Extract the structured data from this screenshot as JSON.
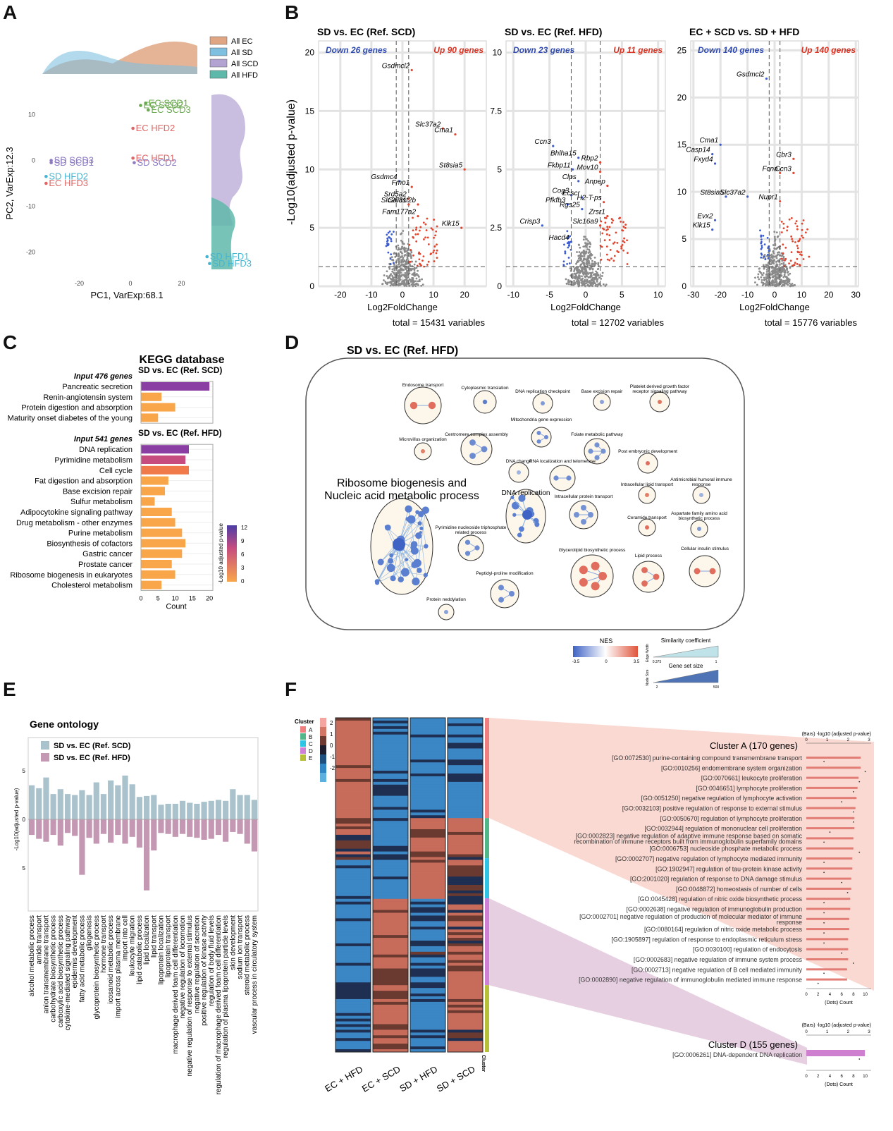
{
  "panels": {
    "a": "A",
    "b": "B",
    "c": "C",
    "d": "D",
    "e": "E",
    "f": "F"
  },
  "chart_data": [
    {
      "id": "A",
      "type": "scatter",
      "xlabel": "PC1, VarExp:68.1",
      "ylabel": "PC2, VarExp:12.3",
      "x_ticks": [
        -20,
        0,
        20
      ],
      "y_ticks": [
        10,
        0,
        -10,
        -20
      ],
      "legend": [
        "All EC",
        "All SD",
        "All SCD",
        "All HFD"
      ],
      "legend_colors": [
        "#e0a684",
        "#7fbfdf",
        "#b2a3d2",
        "#5fb9aa"
      ],
      "points": [
        {
          "label": "EC SCD1",
          "x": 6,
          "y": 12.5,
          "color": "#6aa84f"
        },
        {
          "label": "EC SCD2",
          "x": 4,
          "y": 12,
          "color": "#6aa84f"
        },
        {
          "label": "EC SCD3",
          "x": 7,
          "y": 11,
          "color": "#6aa84f"
        },
        {
          "label": "EC HFD2",
          "x": 1,
          "y": 7,
          "color": "#e06666"
        },
        {
          "label": "EC HFD1",
          "x": 1,
          "y": 0.5,
          "color": "#e06666"
        },
        {
          "label": "SD SCD2",
          "x": 1.5,
          "y": -0.5,
          "color": "#8e7cc3"
        },
        {
          "label": "SD SCD3",
          "x": -31,
          "y": 0,
          "color": "#8e7cc3"
        },
        {
          "label": "SD SCD1",
          "x": -31,
          "y": -0.5,
          "color": "#8e7cc3"
        },
        {
          "label": "SD HFD2",
          "x": -33,
          "y": -3.5,
          "color": "#45b5d1"
        },
        {
          "label": "EC HFD3",
          "x": -33,
          "y": -5,
          "color": "#e06666"
        },
        {
          "label": "SD HFD1",
          "x": 30,
          "y": -21,
          "color": "#45b5d1"
        },
        {
          "label": "SD HFD3",
          "x": 31,
          "y": -22.5,
          "color": "#45b5d1"
        }
      ]
    },
    {
      "id": "B",
      "type": "scatter",
      "subplots": [
        {
          "title": "SD vs. EC (Ref. SCD)",
          "down": "Down 26 genes",
          "up": "Up 90 genes",
          "xlim": [
            -27,
            27
          ],
          "ylim": [
            0,
            21
          ],
          "x_ticks": [
            -20,
            -10,
            0,
            10,
            20
          ],
          "y_ticks": [
            0,
            5,
            10,
            15,
            20
          ],
          "total": "total = 15431 variables",
          "genes": [
            {
              "name": "Gsdmcl2",
              "x": 3,
              "y": 18.5
            },
            {
              "name": "Slc37a2",
              "x": 13,
              "y": 13.5
            },
            {
              "name": "Cma1",
              "x": 17,
              "y": 13
            },
            {
              "name": "St8sia5",
              "x": 20,
              "y": 10
            },
            {
              "name": "Gsdmc4",
              "x": -1,
              "y": 9
            },
            {
              "name": "Fmo1",
              "x": 3,
              "y": 8.5
            },
            {
              "name": "Srd5a2",
              "x": 2,
              "y": 7.5
            },
            {
              "name": "Gal3st2b",
              "x": 5,
              "y": 7
            },
            {
              "name": "Slc20a1",
              "x": 2,
              "y": 7
            },
            {
              "name": "Fam177a2",
              "x": 5,
              "y": 6
            },
            {
              "name": "Klk15",
              "x": 19,
              "y": 5
            }
          ]
        },
        {
          "title": "SD vs. EC (Ref. HFD)",
          "down": "Down 23 genes",
          "up": "Up 11 genes",
          "xlim": [
            -11,
            11
          ],
          "ylim": [
            0,
            10.5
          ],
          "x_ticks": [
            -10,
            -5,
            0,
            5,
            10
          ],
          "y_ticks": [
            0.0,
            2.5,
            5.0,
            7.5,
            10.0
          ],
          "total": "total = 12702 variables",
          "genes": [
            {
              "name": "Ccn3",
              "x": -4.5,
              "y": 6
            },
            {
              "name": "Bhlha15",
              "x": -1,
              "y": 5.5
            },
            {
              "name": "Rbp2",
              "x": 2,
              "y": 5.3
            },
            {
              "name": "Fkbp11",
              "x": -1.8,
              "y": 5
            },
            {
              "name": "Mov10",
              "x": 2,
              "y": 4.9
            },
            {
              "name": "Clps",
              "x": -1,
              "y": 4.5
            },
            {
              "name": "Anpep",
              "x": 3,
              "y": 4.3
            },
            {
              "name": "Cog3",
              "x": -2,
              "y": 3.9
            },
            {
              "name": "Ecscr",
              "x": -0.5,
              "y": 3.8
            },
            {
              "name": "H2-T-ps",
              "x": 2.5,
              "y": 3.6
            },
            {
              "name": "Pfkfb3",
              "x": -2.5,
              "y": 3.5
            },
            {
              "name": "Rgs25",
              "x": -0.5,
              "y": 3.3
            },
            {
              "name": "Zrsr1",
              "x": 3,
              "y": 3
            },
            {
              "name": "Crisp3",
              "x": -6,
              "y": 2.6
            },
            {
              "name": "Slc16a9",
              "x": 2,
              "y": 2.6
            },
            {
              "name": "Hacd4",
              "x": -2,
              "y": 1.9
            }
          ]
        },
        {
          "title": "EC + SCD vs. SD + HFD",
          "down": "Down 140 genes",
          "up": "Up 140 genes",
          "xlim": [
            -31,
            31
          ],
          "ylim": [
            0,
            26
          ],
          "x_ticks": [
            -30,
            -20,
            -10,
            0,
            10,
            20,
            30
          ],
          "y_ticks": [
            0,
            5,
            10,
            15,
            20,
            25
          ],
          "total": "total = 15776 variables",
          "genes": [
            {
              "name": "Gsdmcl2",
              "x": -3,
              "y": 22
            },
            {
              "name": "Cma1",
              "x": -20,
              "y": 15
            },
            {
              "name": "Casp14",
              "x": -23,
              "y": 14
            },
            {
              "name": "Cbr3",
              "x": 7,
              "y": 13.5
            },
            {
              "name": "Fxyd4",
              "x": -22,
              "y": 13
            },
            {
              "name": "Fcna",
              "x": 2,
              "y": 12
            },
            {
              "name": "Ccn3",
              "x": 7,
              "y": 12
            },
            {
              "name": "St8sia5",
              "x": -18,
              "y": 9.5
            },
            {
              "name": "Slc37a2",
              "x": -10,
              "y": 9.5
            },
            {
              "name": "Nupr1",
              "x": 2,
              "y": 9
            },
            {
              "name": "Evx2",
              "x": -22,
              "y": 7
            },
            {
              "name": "Klk15",
              "x": -23,
              "y": 6
            }
          ]
        }
      ],
      "xlabel": "Log2FoldChange",
      "ylabel": "-Log10(adjusted p-value)"
    },
    {
      "id": "C",
      "type": "bar",
      "title": "KEGG database",
      "groups": [
        {
          "subtitle": "SD vs. EC (Ref. SCD)",
          "input": "Input 476 genes",
          "categories": [
            "Pancreatic secretion",
            "Renin-angiotensin system",
            "Protein digestion and absorption",
            "Maturity onset diabetes of the young"
          ],
          "values": [
            20,
            6,
            10,
            5
          ],
          "pvalue": [
            11,
            1,
            1,
            1
          ]
        },
        {
          "subtitle": "SD vs. EC (Ref. HFD)",
          "input": "Input 541 genes",
          "categories": [
            "DNA replication",
            "Pyrimidine metabolism",
            "Cell cycle",
            "Fat digestion and absorption",
            "Base excision repair",
            "Sulfur metabolism",
            "Adipocytokine signaling pathway",
            "Drug metabolism - other enzymes",
            "Purine metabolism",
            "Biosynthesis of cofactors",
            "Gastric cancer",
            "Prostate cancer",
            "Ribosome biogenesis in eukaryotes",
            "Cholesterol metabolism"
          ],
          "values": [
            14,
            13,
            14,
            8,
            7,
            4,
            9,
            10,
            12,
            13,
            12,
            9,
            10,
            6
          ],
          "pvalue": [
            11,
            8,
            3,
            2,
            2,
            1,
            1,
            1,
            1,
            1,
            1,
            1,
            1,
            1
          ]
        }
      ],
      "xlabel": "Count",
      "x_ticks": [
        0,
        5,
        10,
        15,
        20
      ],
      "colorbar_label": "-Log10 adjusted p-value",
      "colorbar_ticks": [
        12,
        9,
        6,
        3,
        0
      ]
    },
    {
      "id": "D",
      "type": "diagram",
      "title": "SD vs. EC (Ref. HFD)",
      "clusters": [
        "Endosome transport",
        "Cytoplasmic translation",
        "DNA replication checkpoint",
        "Base excision repair",
        "Platelet derived growth factor receptor signaling pathway",
        "Mitochondria gene expression",
        "Microvillus organization",
        "Centromere complex assembly",
        "Folate metabolic pathway",
        "Post embryonic development",
        "DNA change",
        "RNA localization and telomerase",
        "Intracellular lipid transport",
        "Antimicrobial humoral immune response",
        "Intracellular protein transport",
        "Ceramide transport",
        "Aspartate family amino acid biosynthetic process",
        "Pyrimidine nucleoside triphosphate related process",
        "Glycerolipid biosynthetic process",
        "Lipid process",
        "Cellular insulin stimulus",
        "Peptidyl-proline modification",
        "Protein neddylation"
      ],
      "big_label": "Ribosome biogenesis and Nucleic acid metabolic process",
      "dna_label": "DNA replication",
      "legend": {
        "nes": "NES",
        "nes_ticks": [
          "-3.5",
          "0",
          "3.5"
        ],
        "sim": "Similarity coefficient",
        "sim_axis": "Edge Width",
        "sim_ticks": [
          "0.375",
          "1"
        ],
        "size": "Gene set size",
        "size_axis": "Node Size",
        "size_ticks": [
          "2",
          "500"
        ]
      }
    },
    {
      "id": "E",
      "type": "bar",
      "title": "Gene ontology",
      "legend": [
        "SD vs. EC (Ref. SCD)",
        "SD vs. EC (Ref. HFD)"
      ],
      "colors": [
        "#a9c2cc",
        "#c497b3"
      ],
      "ylabel": "-Log10(adjusted p-value)",
      "y_ticks": [
        5,
        0,
        5
      ],
      "categories": [
        "alcohol metabolic process",
        "amide transport",
        "anion transmembrane transport",
        "carbohydrate biosynthetic process",
        "carboxylic acid biosynthetic process",
        "cytokine-mediated signaling pathway",
        "epidermis development",
        "fatty acid metabolic process",
        "gliogenesis",
        "glycoprotein biosynthetic process",
        "hormone transport",
        "icosanoid metabolic process",
        "import across plasma membrane",
        "import into cell",
        "leukocyte migration",
        "lipid catabolic process",
        "lipid localization",
        "lipid transport",
        "lipoprotein localization",
        "lipoprotein transport",
        "macrophage derived foam cell differentiation",
        "negative regulation of locomotion",
        "negative regulation of response to external stimulus",
        "negative regulation of secretion",
        "positive regulation of kinase activity",
        "regulation of body fluid levels",
        "regulation of macrophage derived foam cell differentiation",
        "regulation of plasma lipoprotein particle levels",
        "skin development",
        "sodium ion transport",
        "steroid metabolic process",
        "vascular process in circulatory system"
      ],
      "series": [
        {
          "name": "SD vs. EC (Ref. SCD)",
          "values": [
            3.5,
            3.2,
            4.3,
            2.6,
            3.1,
            2.6,
            2.5,
            3.0,
            2.5,
            3.8,
            2.6,
            4.0,
            3.5,
            4.5,
            3.6,
            2.3,
            2.4,
            2.5,
            1.5,
            1.6,
            1.6,
            1.9,
            1.7,
            1.6,
            1.8,
            1.9,
            2.0,
            1.9,
            3.1,
            2.5,
            2.5,
            2.0
          ]
        },
        {
          "name": "SD vs. EC (Ref. HFD)",
          "values": [
            1.6,
            2.0,
            2.3,
            1.6,
            2.7,
            1.4,
            1.7,
            5.7,
            1.9,
            2.5,
            1.5,
            2.4,
            1.6,
            2.5,
            1.8,
            2.9,
            7.3,
            3.2,
            1.4,
            1.5,
            1.8,
            1.5,
            1.8,
            1.9,
            2.1,
            2.0,
            1.6,
            2.3,
            1.3,
            1.5,
            2.5,
            3.3
          ]
        }
      ]
    },
    {
      "id": "F",
      "type": "heatmap",
      "columns": [
        "EC + HFD",
        "EC + SCD",
        "SD + HFD",
        "SD + SCD"
      ],
      "cluster_label": "Cluster",
      "clusters": [
        "A",
        "B",
        "C",
        "D",
        "E"
      ],
      "cluster_colors": [
        "#f08080",
        "#52b788",
        "#2ec4e6",
        "#d07fd7",
        "#b8c03a"
      ],
      "color_scale": [
        2,
        1,
        0,
        -1,
        -2
      ],
      "clusterA": {
        "title": "Cluster A (170 genes)",
        "axis_title": "(Bars) -log10 (adjusted p-value)",
        "dots_axis": "(Dots) Count",
        "top_ticks": [
          0,
          1,
          2,
          3
        ],
        "bottom_ticks": [
          0,
          2,
          4,
          6,
          8,
          10
        ],
        "terms": [
          "[GO:0072530] purine-containing compound transmembrane transport",
          "[GO:0010256] endomembrane system organization",
          "[GO:0070661] leukocyte proliferation",
          "[GO:0046651] lymphocyte proliferation",
          "[GO:0051250] negative regulation of lymphocyte activation",
          "[GO:0032103] positive regulation of response to external stimulus",
          "[GO:0050670] regulation of lymphocyte proliferation",
          "[GO:0032944] regulation of mononuclear cell proliferation",
          "[GO:0002823] negative regulation of adaptive immune response based on somatic recombination of immune receptors built from immunoglobulin superfamily domains",
          "[GO:0006753] nucleoside phosphate metabolic process",
          "[GO:0002707] negative regulation of lymphocyte mediated immunity",
          "[GO:1902947] regulation of tau-protein kinase activity",
          "[GO:2001020] regulation of response to DNA damage stimulus",
          "[GO:0048872] homeostasis of number of cells",
          "[GO:0045428] regulation of nitric oxide biosynthetic process",
          "[GO:0002638] negative regulation of immunoglobulin production",
          "[GO:0002701] negative regulation of production of molecular mediator of immune response",
          "[GO:0080164] regulation of nitric oxide metabolic process",
          "[GO:1905897] regulation of response to endoplasmic reticulum stress",
          "[GO:0030100] regulation of endocytosis",
          "[GO:0002683] negative regulation of immune system process",
          "[GO:0002713] negative regulation of B cell mediated immunity",
          "[GO:0002890] negative regulation of immunoglobulin mediated immune response"
        ],
        "bars": [
          2.6,
          2.6,
          2.5,
          2.45,
          2.4,
          2.35,
          2.3,
          2.3,
          2.25,
          2.25,
          2.2,
          2.2,
          2.15,
          2.15,
          2.1,
          2.1,
          2.05,
          2.05,
          2.0,
          2.0,
          2.0,
          1.95,
          1.95
        ],
        "dots": [
          3,
          10,
          9,
          8,
          6,
          8,
          8,
          4,
          3,
          9,
          3,
          3,
          6,
          7,
          3,
          3,
          3,
          3,
          3,
          6,
          8,
          3,
          2
        ]
      },
      "clusterD": {
        "title": "Cluster D (155 genes)",
        "axis_title": "(Bars) -log10 (adjusted p-value)",
        "dots_axis": "(Dots) Count",
        "top_ticks": [
          0,
          1,
          2,
          3
        ],
        "bottom_ticks": [
          0,
          2,
          4,
          6,
          8,
          10
        ],
        "terms": [
          "[GO:0006261] DNA-dependent DNA replication"
        ],
        "bars": [
          2.8
        ],
        "dots": [
          9
        ]
      }
    }
  ]
}
